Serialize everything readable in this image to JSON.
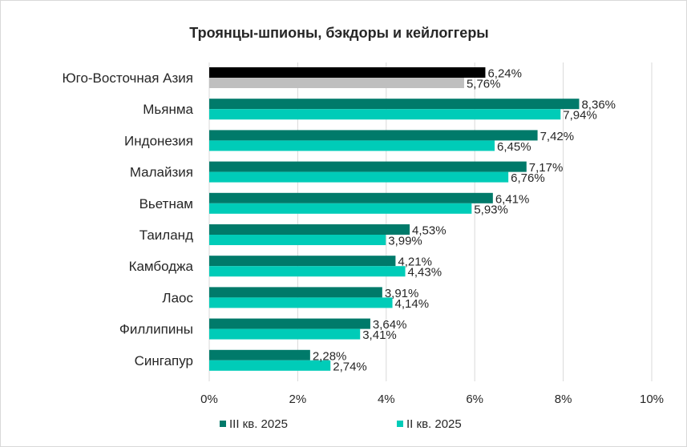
{
  "chart_data": {
    "type": "bar",
    "orientation": "horizontal",
    "title": "Троянцы-шпионы, бэкдоры и кейлоггеры",
    "categories": [
      "Юго-Восточная Азия",
      "Мьянма",
      "Индонезия",
      "Малайзия",
      "Вьетнам",
      "Таиланд",
      "Камбоджа",
      "Лаос",
      "Филлипины",
      "Сингапур"
    ],
    "series": [
      {
        "name": "III кв. 2025",
        "color": "#007A6A",
        "values": [
          6.24,
          8.36,
          7.42,
          7.17,
          6.41,
          4.53,
          4.21,
          3.91,
          3.64,
          2.28
        ],
        "labels": [
          "6,24%",
          "8,36%",
          "7,42%",
          "7,17%",
          "6,41%",
          "4,53%",
          "4,21%",
          "3,91%",
          "3,64%",
          "2,28%"
        ]
      },
      {
        "name": "II кв. 2025",
        "color": "#00CCB8",
        "values": [
          5.76,
          7.94,
          6.45,
          6.76,
          5.93,
          3.99,
          4.43,
          4.14,
          3.41,
          2.74
        ],
        "labels": [
          "5,76%",
          "7,94%",
          "6,45%",
          "6,76%",
          "5,93%",
          "3,99%",
          "4,43%",
          "4,14%",
          "3,41%",
          "2,74%"
        ]
      }
    ],
    "highlight": {
      "category_index": 0,
      "colors": [
        "#000000",
        "#BFBFBF"
      ]
    },
    "xlim": [
      0,
      10
    ],
    "xticks": [
      0,
      2,
      4,
      6,
      8,
      10
    ],
    "xtick_labels": [
      "0%",
      "2%",
      "4%",
      "6%",
      "8%",
      "10%"
    ],
    "grid": true,
    "gridline_color": "#D9D9D9",
    "legend_position": "bottom"
  }
}
